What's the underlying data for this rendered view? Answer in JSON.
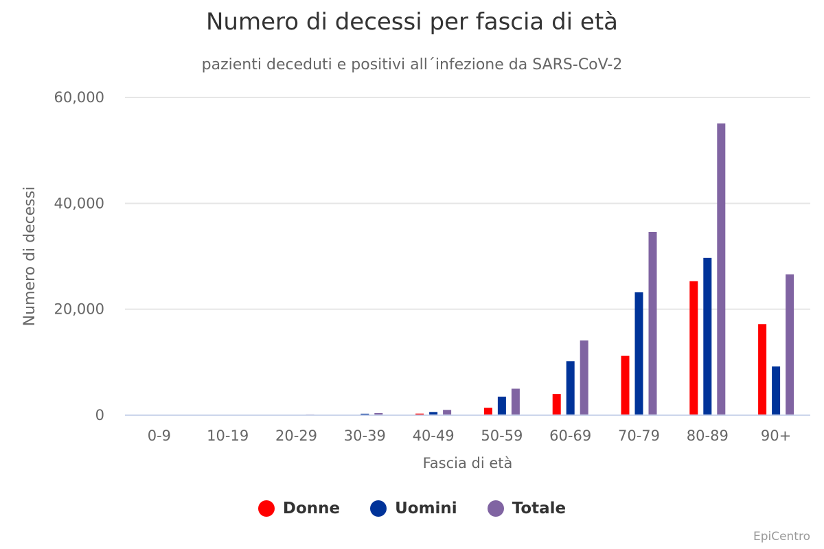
{
  "chart_data": {
    "type": "bar",
    "title": "Numero di decessi per fascia di età",
    "subtitle": "pazienti deceduti e positivi all´infezione da SARS-CoV-2",
    "xlabel": "Fascia di età",
    "ylabel": "Numero di decessi",
    "categories": [
      "0-9",
      "10-19",
      "20-29",
      "30-39",
      "40-49",
      "50-59",
      "60-69",
      "70-79",
      "80-89",
      "90+"
    ],
    "ylim": [
      0,
      60000
    ],
    "yticks": [
      0,
      20000,
      40000,
      60000
    ],
    "ytick_labels": [
      "0",
      "20,000",
      "40,000",
      "60,000"
    ],
    "grid": true,
    "legend_position": "bottom-center",
    "series": [
      {
        "name": "Donne",
        "color": "#ff0000",
        "values": [
          5,
          10,
          50,
          120,
          300,
          1400,
          4000,
          11200,
          25300,
          17200
        ]
      },
      {
        "name": "Uomini",
        "color": "#003399",
        "values": [
          8,
          20,
          100,
          280,
          600,
          3500,
          10200,
          23200,
          29700,
          9200
        ]
      },
      {
        "name": "Totale",
        "color": "#8064a2",
        "values": [
          13,
          30,
          150,
          400,
          1000,
          5000,
          14100,
          34600,
          55100,
          26600
        ]
      }
    ],
    "credit": "EpiCentro"
  }
}
